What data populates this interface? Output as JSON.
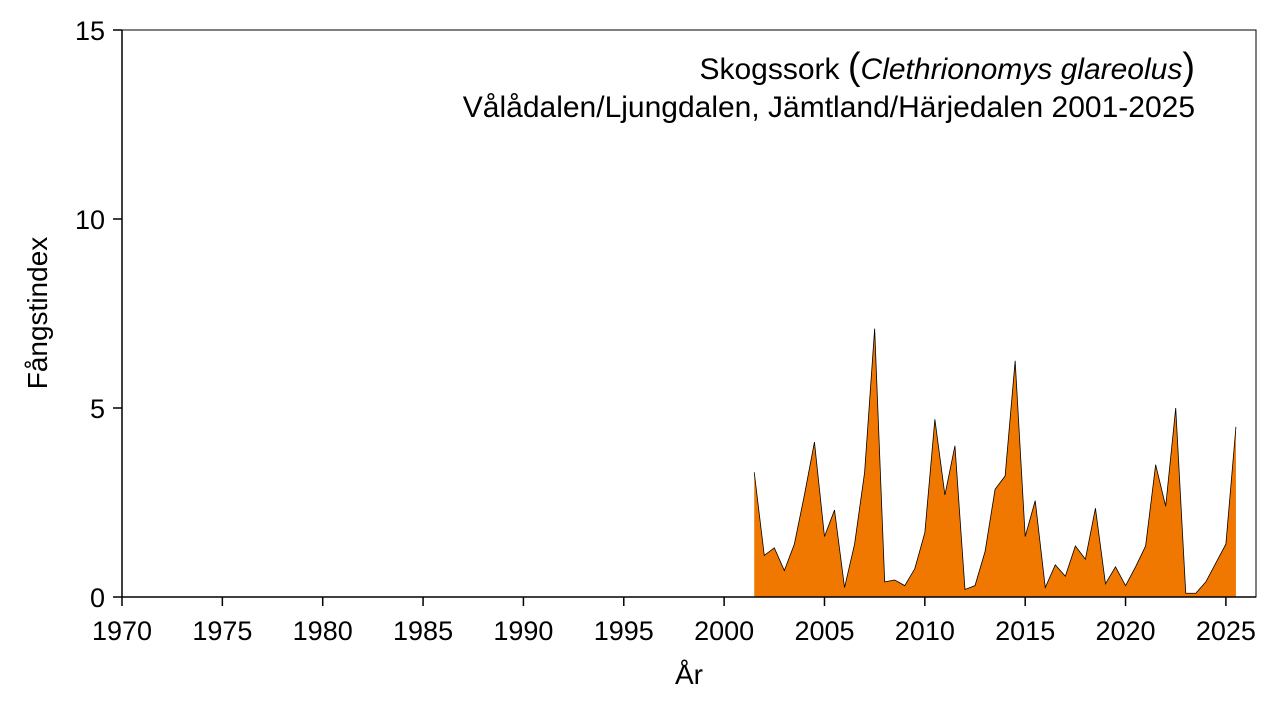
{
  "chart_data": {
    "type": "area",
    "title_common": "Skogssork",
    "title_paren_open": "(",
    "title_latin": "Clethrionomys glareolus",
    "title_paren_close": ")",
    "subtitle": "Vålådalen/Ljungdalen, Jämtland/Härjedalen 2001-2025",
    "xlabel": "År",
    "ylabel": "Fångstindex",
    "xlim": [
      1970,
      2026.5
    ],
    "ylim": [
      0,
      15
    ],
    "x_ticks": [
      "1970",
      "1975",
      "1980",
      "1985",
      "1990",
      "1995",
      "2000",
      "2005",
      "2010",
      "2015",
      "2020",
      "2025"
    ],
    "y_ticks": [
      "0",
      "5",
      "10",
      "15"
    ],
    "grid": false,
    "fill_color": "#f07800",
    "line_color": "#000000",
    "series": [
      {
        "x": [
          2001.5,
          2002.0,
          2002.5,
          2003.0,
          2003.5,
          2004.0,
          2004.5,
          2005.0,
          2005.5,
          2006.0,
          2006.5,
          2007.0,
          2007.5,
          2008.0,
          2008.5,
          2009.0,
          2009.5,
          2010.0,
          2010.5,
          2011.0,
          2011.5,
          2012.0,
          2012.5,
          2013.0,
          2013.5,
          2014.0,
          2014.5,
          2015.0,
          2015.5,
          2016.0,
          2016.5,
          2017.0,
          2017.5,
          2018.0,
          2018.5,
          2019.0,
          2019.5,
          2020.0,
          2020.5,
          2021.0,
          2021.5,
          2022.0,
          2022.5,
          2023.0,
          2023.5,
          2024.0,
          2024.5,
          2025.0,
          2025.5
        ],
        "values": [
          3.3,
          1.1,
          1.3,
          0.7,
          1.4,
          2.7,
          4.1,
          1.6,
          2.3,
          0.25,
          1.4,
          3.3,
          7.1,
          0.4,
          0.45,
          0.3,
          0.75,
          1.7,
          4.7,
          2.7,
          4.0,
          0.2,
          0.3,
          1.2,
          2.85,
          3.2,
          6.25,
          1.6,
          2.55,
          0.25,
          0.85,
          0.55,
          1.35,
          1.0,
          2.35,
          0.35,
          0.8,
          0.3,
          0.8,
          1.35,
          3.5,
          2.4,
          5.0,
          0.1,
          0.1,
          0.4,
          0.9,
          1.4,
          4.5
        ]
      }
    ]
  }
}
